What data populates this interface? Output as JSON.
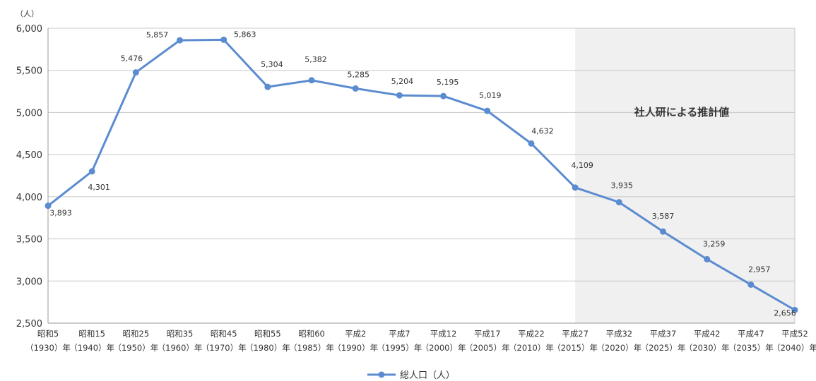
{
  "chart_data": {
    "type": "line",
    "unit_label": "（人）",
    "projection_label": "社人研による推計値",
    "ylim": [
      2500,
      6000
    ],
    "yticks": [
      "2,500",
      "3,000",
      "3,500",
      "4,000",
      "4,500",
      "5,000",
      "5,500",
      "6,000"
    ],
    "ytick_values": [
      2500,
      3000,
      3500,
      4000,
      4500,
      5000,
      5500,
      6000
    ],
    "categories_top": [
      "昭和5",
      "昭和15",
      "昭和25",
      "昭和35",
      "昭和45",
      "昭和55",
      "昭和60",
      "平成2",
      "平成7",
      "平成12",
      "平成17",
      "平成22",
      "平成27",
      "平成32",
      "平成37",
      "平成42",
      "平成47",
      "平成52"
    ],
    "categories_bottom": [
      "（1930）年",
      "（1940）年",
      "（1950）年",
      "（1960）年",
      "（1970）年",
      "（1980）年",
      "（1985）年",
      "（1990）年",
      "（1995）年",
      "（2000）年",
      "（2005）年",
      "（2010）年",
      "（2015）年",
      "（2020）年",
      "（2025）年",
      "（2030）年",
      "（2035）年",
      "（2040）年"
    ],
    "projection_start_index": 12,
    "series": [
      {
        "name": "総人口（人）",
        "color": "#5b8bd0",
        "values": [
          3893,
          4301,
          5476,
          5857,
          5863,
          5304,
          5382,
          5285,
          5204,
          5195,
          5019,
          4632,
          4109,
          3935,
          3587,
          3259,
          2957,
          2656
        ],
        "labels": [
          "3,893",
          "4,301",
          "5,476",
          "5,857",
          "5,863",
          "5,304",
          "5,382",
          "5,285",
          "5,204",
          "5,195",
          "5,019",
          "4,632",
          "4,109",
          "3,935",
          "3,587",
          "3,259",
          "2,957",
          "2,656"
        ]
      }
    ],
    "shade_color": "#f0f0f0",
    "grid": true,
    "legend_position": "bottom"
  }
}
